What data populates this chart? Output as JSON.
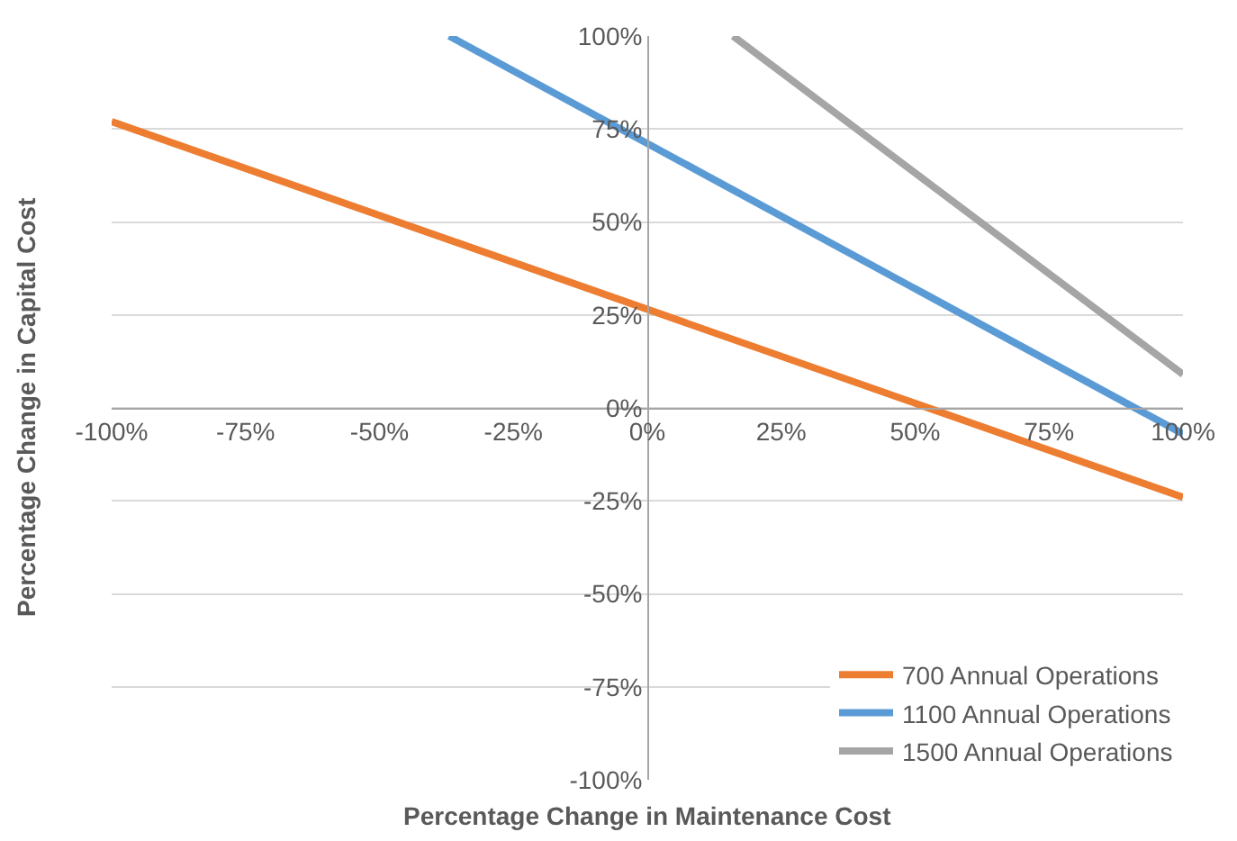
{
  "chart_data": {
    "type": "line",
    "xlabel": "Percentage Change in Maintenance Cost",
    "ylabel": "Percentage Change in Capital Cost",
    "xlim": [
      -100,
      100
    ],
    "ylim": [
      -100,
      100
    ],
    "xticks": [
      {
        "value": -100,
        "label": "-100%"
      },
      {
        "value": -75,
        "label": "-75%"
      },
      {
        "value": -50,
        "label": "-50%"
      },
      {
        "value": -25,
        "label": "-25%"
      },
      {
        "value": 0,
        "label": "0%"
      },
      {
        "value": 25,
        "label": "25%"
      },
      {
        "value": 50,
        "label": "50%"
      },
      {
        "value": 75,
        "label": "75%"
      },
      {
        "value": 100,
        "label": "100%"
      }
    ],
    "yticks": [
      {
        "value": -100,
        "label": "-100%"
      },
      {
        "value": -75,
        "label": "-75%"
      },
      {
        "value": -50,
        "label": "-50%"
      },
      {
        "value": -25,
        "label": "-25%"
      },
      {
        "value": 0,
        "label": "0%"
      },
      {
        "value": 25,
        "label": "25%"
      },
      {
        "value": 50,
        "label": "50%"
      },
      {
        "value": 75,
        "label": "75%"
      },
      {
        "value": 100,
        "label": "100%"
      }
    ],
    "grid": "y",
    "legend": "bottom right",
    "marker": "none",
    "line_style": "solid",
    "series": [
      {
        "name": "700 Annual Operations",
        "color": "#ed7d31",
        "x": [
          -100,
          100
        ],
        "values": [
          77,
          -24
        ]
      },
      {
        "name": "1100 Annual Operations",
        "color": "#5b9bd5",
        "x": [
          -37,
          100
        ],
        "values": [
          100,
          -7
        ]
      },
      {
        "name": "1500 Annual Operations",
        "color": "#a5a5a5",
        "x": [
          16,
          100
        ],
        "values": [
          100,
          9
        ]
      }
    ]
  }
}
